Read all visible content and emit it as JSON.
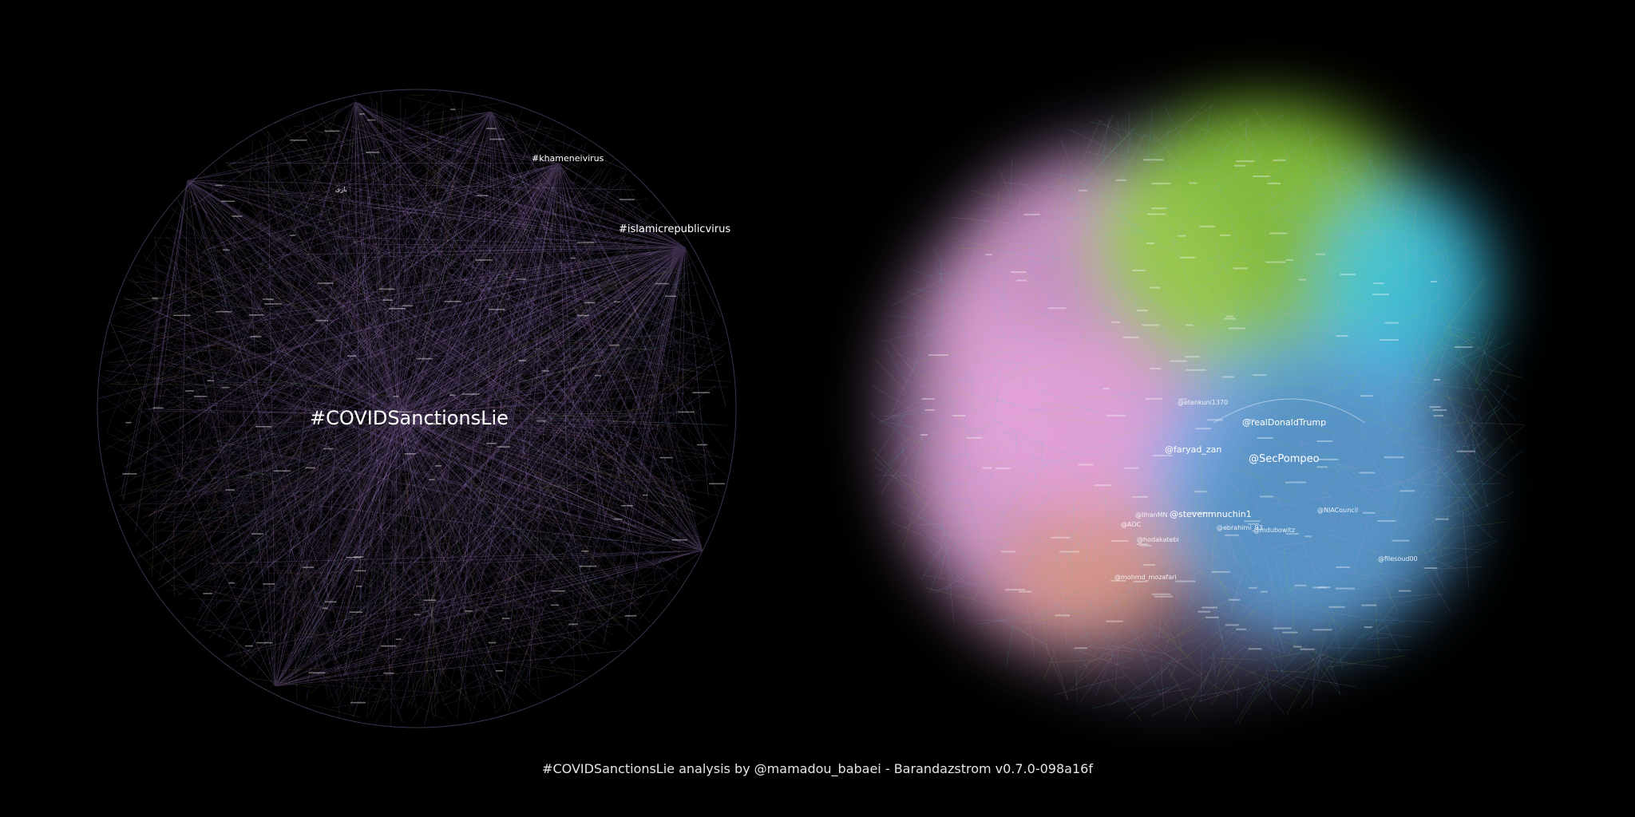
{
  "caption": "#COVIDSanctionsLie analysis by @mamadou_babaei - Barandazstrom v0.7.0-098a16f",
  "left_graph": {
    "edge_color": "#b58be0",
    "labels": {
      "main": "#COVIDSanctionsLie",
      "islamic": "#islamicrepublicvirus",
      "khamenei": "#khameneivirus",
      "small1": "بازی"
    }
  },
  "right_graph": {
    "cluster_colors": {
      "pink": "#e7a6dc",
      "green": "#8fd13a",
      "cyan": "#3fc6e8",
      "blue": "#5fb0ec",
      "orange": "#e79c68",
      "violet": "#b9a0e6"
    },
    "labels": {
      "trump": "@realDonaldTrump",
      "faryad": "@faryad_zan",
      "pompeo": "@SecPompeo",
      "mnuchin": "@stevenmnuchin1",
      "niac": "@NIACouncil",
      "ilhan": "@IlhanMN",
      "aoc": "@AOC",
      "hodakatebi": "@hodakatebi",
      "mdubowitz": "@mdubowitz",
      "mozafari": "@mohmd_mozafari",
      "etenkuni": "@etenkuni1370",
      "ebrahim": "@ebrahimi_93",
      "filesoud": "@filesoud00"
    }
  }
}
